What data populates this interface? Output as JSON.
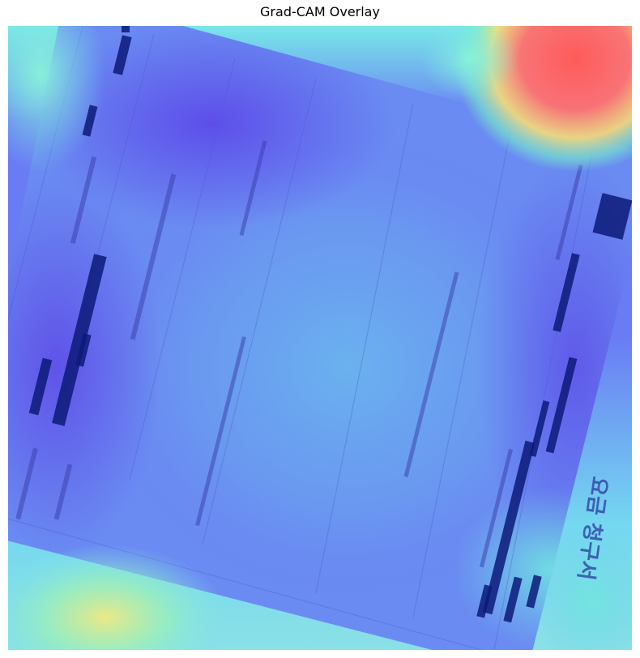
{
  "figure": {
    "title": "Grad-CAM Overlay"
  },
  "document": {
    "rotated_text": "요금 청구서"
  },
  "colors": {
    "heat_low": "#5a3cf0",
    "heat_mid": "#66c8f0",
    "heat_high": "#ff6060",
    "heat_warm": "#ffe070",
    "heat_cyan": "#60f0e0",
    "redaction": "#0a1470"
  }
}
